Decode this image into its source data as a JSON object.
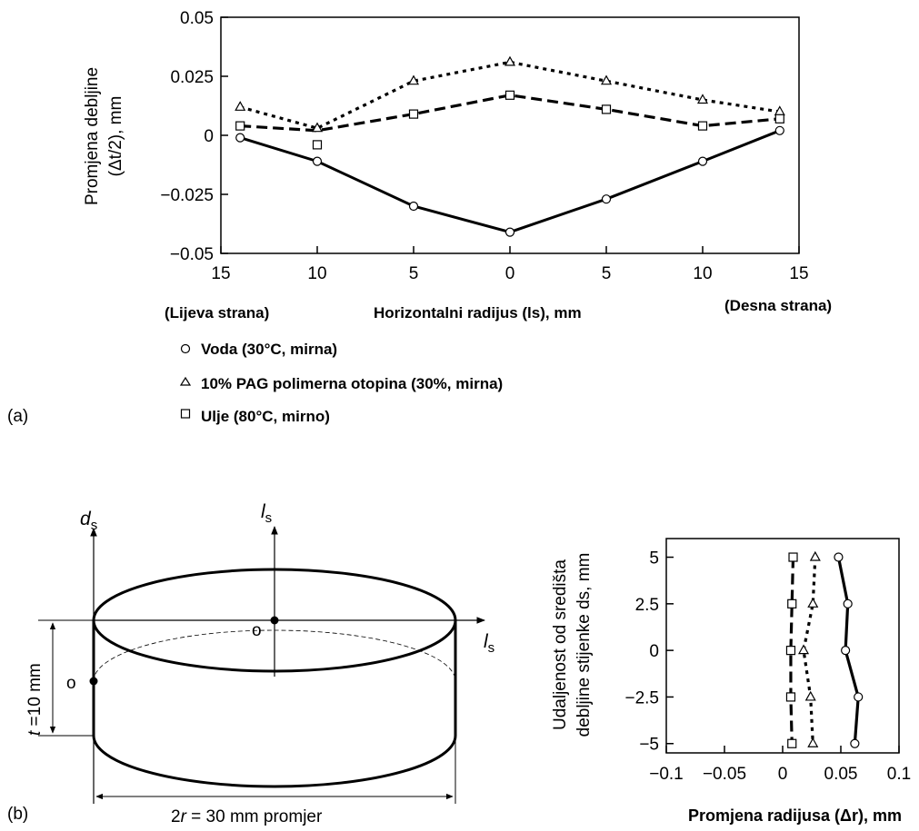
{
  "chart_data": [
    {
      "type": "line",
      "panel_label": "(a)",
      "ylabel_line1": "Promjena debljine",
      "ylabel_line2": "(Δt/2), mm",
      "xlabel": "Horizontalni radijus (ls), mm",
      "left_side_label": "(Lijeva strana)",
      "right_side_label": "(Desna strana)",
      "x_tick_labels": [
        "15",
        "10",
        "5",
        "0",
        "5",
        "10",
        "15"
      ],
      "y_tick_labels": [
        "0.05",
        "0.025",
        "0",
        "−0.025",
        "−0.05"
      ],
      "x_range": [
        -15,
        15
      ],
      "ylim": [
        -0.05,
        0.05
      ],
      "grid": false,
      "series": [
        {
          "name": "Voda (30°C, mirna)",
          "marker": "circle",
          "line_style": "solid",
          "x": [
            -14,
            -10,
            -5,
            0,
            5,
            10,
            14
          ],
          "y": [
            -0.001,
            -0.011,
            -0.03,
            -0.041,
            -0.027,
            -0.011,
            0.002
          ]
        },
        {
          "name": "10% PAG polimerna otopina (30%, mirna)",
          "marker": "triangle",
          "line_style": "dotted",
          "x": [
            -14,
            -10,
            -5,
            0,
            5,
            10,
            14
          ],
          "y": [
            0.012,
            0.003,
            0.023,
            0.031,
            0.023,
            0.015,
            0.01
          ]
        },
        {
          "name": "Ulje (80°C, mirno)",
          "marker": "square",
          "line_style": "dashed",
          "x": [
            -14,
            -10,
            -5,
            0,
            5,
            10,
            14
          ],
          "y": [
            0.004,
            -0.004,
            0.009,
            0.017,
            0.011,
            0.004,
            0.007
          ],
          "line_y_override_at_minus10": 0.002
        }
      ]
    },
    {
      "type": "line",
      "panel_label": "(b)",
      "ylabel_line1": "Udaljenost od središta",
      "ylabel_line2": "debljine stijenke ds, mm",
      "xlabel": "Promjena radijusa (Δr), mm",
      "x_tick_labels": [
        "−0.1",
        "−0.05",
        "0",
        "0.05",
        "0.1"
      ],
      "y_tick_labels": [
        "5",
        "2.5",
        "0",
        "−2.5",
        "−5"
      ],
      "xlim": [
        -0.1,
        0.1
      ],
      "ylim": [
        -5.5,
        6
      ],
      "grid": false,
      "series": [
        {
          "marker": "circle",
          "line_style": "solid",
          "y": [
            5,
            2.5,
            0,
            -2.5,
            -5
          ],
          "x": [
            0.048,
            0.056,
            0.054,
            0.065,
            0.062
          ]
        },
        {
          "marker": "triangle",
          "line_style": "dotted",
          "y": [
            5,
            2.5,
            0,
            -2.5,
            -5
          ],
          "x": [
            0.028,
            0.026,
            0.018,
            0.024,
            0.026
          ]
        },
        {
          "marker": "square",
          "line_style": "dashed",
          "y": [
            5,
            2.5,
            0,
            -2.5,
            -5
          ],
          "x": [
            0.009,
            0.008,
            0.007,
            0.007,
            0.008
          ]
        }
      ]
    }
  ],
  "diagram": {
    "ds_label": "d",
    "ds_sub": "s",
    "ls_label": "l",
    "ls_sub": "s",
    "o_top": "o",
    "o_left": "o",
    "thickness_label_italic": "t",
    "thickness_label": " =10 mm",
    "diameter_label_prefix": "2",
    "diameter_label_italic": "r",
    "diameter_label_rest": " = 30 mm  promjer"
  }
}
